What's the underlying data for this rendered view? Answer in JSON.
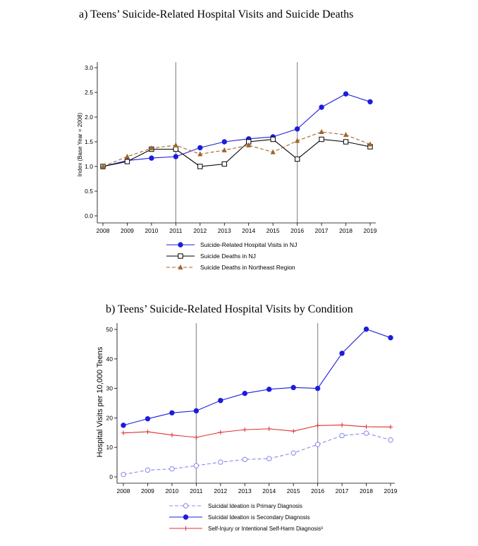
{
  "chart_data": [
    {
      "type": "line",
      "title": "a) Teens’ Suicide-Related Hospital Visits and Suicide Deaths",
      "ylabel": "Index (Base Year = 2008)",
      "xlabel": "",
      "x": [
        "2008",
        "2009",
        "2010",
        "2011",
        "2012",
        "2013",
        "2014",
        "2015",
        "2016",
        "2017",
        "2018",
        "2019"
      ],
      "yticks": [
        "0.0",
        "0.5",
        "1.0",
        "1.5",
        "2.0",
        "2.5",
        "3.0"
      ],
      "ylim": [
        0,
        3.0
      ],
      "vlines": [
        "2011",
        "2016"
      ],
      "legend_position": "bottom",
      "series": [
        {
          "name": "Suicide-Related Hospital Visits in NJ",
          "color": "#1c1cde",
          "marker": "filled-circle",
          "dash": "solid",
          "values": [
            1.0,
            1.12,
            1.17,
            1.2,
            1.38,
            1.5,
            1.56,
            1.6,
            1.76,
            2.2,
            2.47,
            2.31
          ]
        },
        {
          "name": "Suicide Deaths in NJ",
          "color": "#000000",
          "marker": "hollow-square",
          "dash": "solid",
          "values": [
            1.0,
            1.1,
            1.35,
            1.35,
            1.0,
            1.05,
            1.5,
            1.55,
            1.15,
            1.55,
            1.5,
            1.4
          ]
        },
        {
          "name": "Suicide Deaths in Northeast Region",
          "color": "#a0652a",
          "marker": "filled-triangle",
          "dash": "dashed",
          "values": [
            1.0,
            1.2,
            1.37,
            1.43,
            1.25,
            1.33,
            1.43,
            1.29,
            1.52,
            1.7,
            1.64,
            1.45
          ]
        }
      ]
    },
    {
      "type": "line",
      "title": "b)   Teens’ Suicide-Related Hospital Visits by Condition",
      "ylabel": "Hospital Visits per 10,000 Teens",
      "xlabel": "",
      "x": [
        "2008",
        "2009",
        "2010",
        "2011",
        "2012",
        "2013",
        "2014",
        "2015",
        "2016",
        "2017",
        "2018",
        "2019"
      ],
      "yticks": [
        "0",
        "10",
        "20",
        "30",
        "40",
        "50"
      ],
      "ylim": [
        0,
        50
      ],
      "vlines": [
        "2011",
        "2016"
      ],
      "legend_position": "bottom",
      "series": [
        {
          "name": "Suicidal Ideation is Primary Diagnosis",
          "color": "#8888ee",
          "marker": "hollow-circle",
          "dash": "dashed",
          "values": [
            0.8,
            2.3,
            2.7,
            3.8,
            5.0,
            5.9,
            6.2,
            8.1,
            11.0,
            14.0,
            14.8,
            12.5
          ]
        },
        {
          "name": "Suicidal Ideation is Secondary Diagnosis",
          "color": "#1c1cde",
          "marker": "filled-circle",
          "dash": "solid",
          "values": [
            17.5,
            19.7,
            21.7,
            22.4,
            25.9,
            28.3,
            29.7,
            30.3,
            30.0,
            41.9,
            50.1,
            47.2
          ]
        },
        {
          "name": "Self-Injury or Intentional Self-Harm Diagnosis³",
          "color": "#e03030",
          "marker": "plus",
          "dash": "solid",
          "values": [
            14.9,
            15.3,
            14.2,
            13.4,
            15.1,
            16.0,
            16.3,
            15.5,
            17.4,
            17.6,
            17.0,
            16.9
          ]
        }
      ]
    }
  ]
}
